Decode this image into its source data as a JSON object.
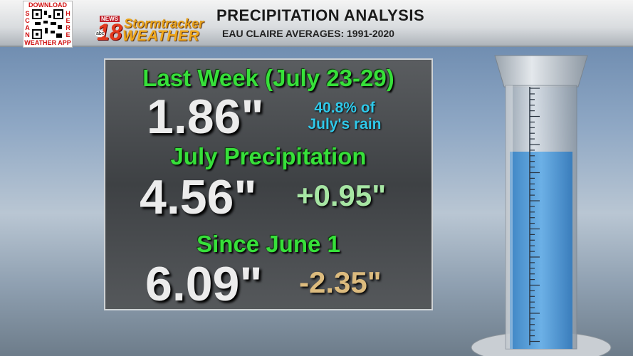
{
  "qr": {
    "top": "DOWNLOAD",
    "left": "SCAN",
    "right": "HERE",
    "bottom": "WEATHER APP"
  },
  "logo": {
    "news": "NEWS",
    "number": "18",
    "network": "abc",
    "brand": "Stormtracker",
    "word": "WEATHER"
  },
  "header": {
    "title": "PRECIPITATION ANALYSIS",
    "subtitle": "EAU CLAIRE AVERAGES: 1991-2020"
  },
  "sections": [
    {
      "heading": "Last Week (July 23-29)",
      "amount": "1.86\"",
      "note": [
        "40.8% of",
        "July's rain"
      ]
    },
    {
      "heading": "July Precipitation",
      "amount": "4.56\"",
      "departure": "+0.95\""
    },
    {
      "heading": "Since June 1",
      "amount": "6.09\"",
      "departure": "-2.35\""
    }
  ]
}
